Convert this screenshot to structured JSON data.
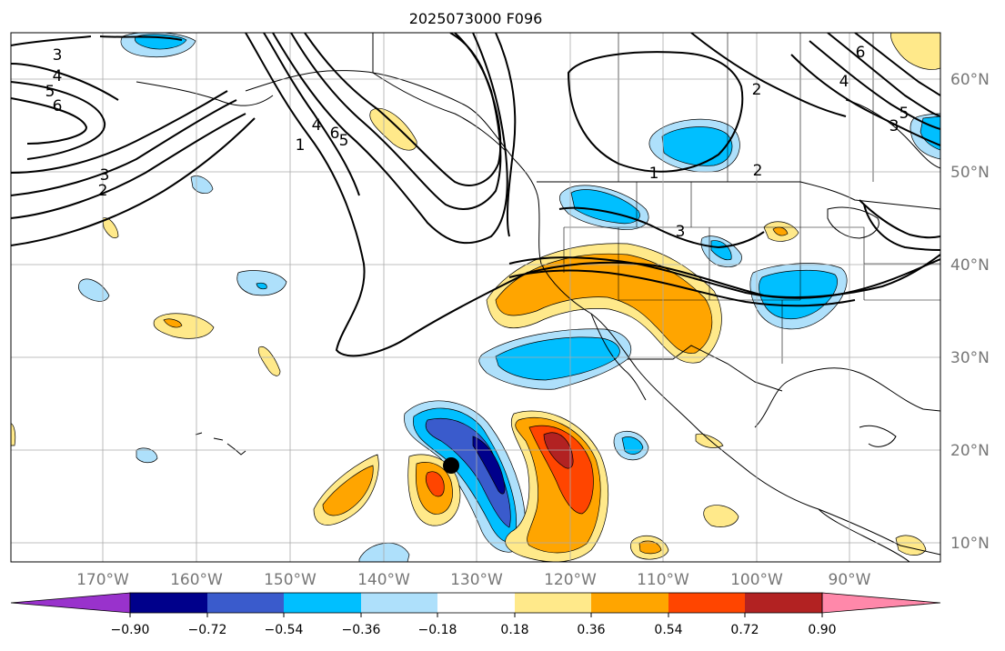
{
  "title": "2025073000 F096",
  "lon_labels": [
    "170°W",
    "160°W",
    "150°W",
    "140°W",
    "130°W",
    "120°W",
    "110°W",
    "100°W",
    "90°W"
  ],
  "lat_labels": [
    "60°N",
    "50°N",
    "40°N",
    "30°N",
    "20°N",
    "10°N"
  ],
  "contour_labels": [
    {
      "text": "3"
    },
    {
      "text": "4"
    },
    {
      "text": "5"
    },
    {
      "text": "6"
    },
    {
      "text": "3"
    },
    {
      "text": "2"
    },
    {
      "text": "4"
    },
    {
      "text": "6"
    },
    {
      "text": "5"
    },
    {
      "text": "1"
    },
    {
      "text": "2"
    },
    {
      "text": "1"
    },
    {
      "text": "2"
    },
    {
      "text": "3"
    },
    {
      "text": "4"
    },
    {
      "text": "6"
    },
    {
      "text": "5"
    },
    {
      "text": "3"
    }
  ],
  "colorbar": {
    "tick_labels": [
      "−0.90",
      "−0.72",
      "−0.54",
      "−0.36",
      "−0.18",
      "0.18",
      "0.36",
      "0.54",
      "0.72",
      "0.90"
    ],
    "colors": {
      "under": "#9932cc",
      "bins": [
        "#00008b",
        "#3a5bcc",
        "#00bfff",
        "#aee0fb",
        "#ffffff",
        "#ffe98a",
        "#ffa500",
        "#ff4500",
        "#b22222"
      ],
      "over": "#ff88aa"
    }
  },
  "storm_marker": {
    "label": "tropical-cyclone-position"
  }
}
